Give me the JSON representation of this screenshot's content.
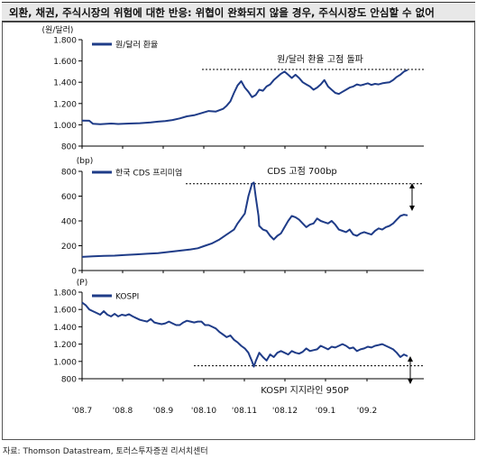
{
  "title": "외환, 채권, 주식시장의 위험에 대한 반응: 위협이 완화되지 않을 경우, 주식시장도 안심할 수 없어",
  "source": "자료: Thomson Datastream, 토러스투자증권 리서치센터",
  "x_tick_labels": [
    "'08.7",
    "'08.8",
    "'08.9",
    "'08.10",
    "'08.11",
    "'08.12",
    "'09.1",
    "'09.2"
  ],
  "chart_data": [
    {
      "type": "line",
      "unit_label": "(원/달러)",
      "legend": "원/달러 환율",
      "annotation": "원/달러 환율 고점 돌파",
      "threshold": 1520,
      "ylim": [
        800,
        1800
      ],
      "yticks": [
        "1.800",
        "1.600",
        "1.400",
        "1.200",
        "1.000",
        "800"
      ],
      "color": "#1f3c88",
      "points": [
        [
          0,
          1040
        ],
        [
          2,
          1038
        ],
        [
          3,
          1010
        ],
        [
          5,
          1005
        ],
        [
          8,
          1012
        ],
        [
          10,
          1008
        ],
        [
          13,
          1012
        ],
        [
          16,
          1015
        ],
        [
          19,
          1022
        ],
        [
          21,
          1030
        ],
        [
          23,
          1035
        ],
        [
          25,
          1045
        ],
        [
          27,
          1060
        ],
        [
          29,
          1080
        ],
        [
          31,
          1090
        ],
        [
          33,
          1110
        ],
        [
          35,
          1130
        ],
        [
          37,
          1125
        ],
        [
          39,
          1150
        ],
        [
          40,
          1180
        ],
        [
          41,
          1220
        ],
        [
          42,
          1300
        ],
        [
          43,
          1370
        ],
        [
          44,
          1410
        ],
        [
          45,
          1350
        ],
        [
          46,
          1310
        ],
        [
          47,
          1260
        ],
        [
          48,
          1280
        ],
        [
          49,
          1330
        ],
        [
          50,
          1320
        ],
        [
          51,
          1360
        ],
        [
          52,
          1380
        ],
        [
          53,
          1420
        ],
        [
          54,
          1450
        ],
        [
          55,
          1480
        ],
        [
          56,
          1500
        ],
        [
          57,
          1470
        ],
        [
          58,
          1440
        ],
        [
          59,
          1470
        ],
        [
          60,
          1440
        ],
        [
          61,
          1400
        ],
        [
          62,
          1380
        ],
        [
          63,
          1360
        ],
        [
          64,
          1330
        ],
        [
          65,
          1350
        ],
        [
          66,
          1380
        ],
        [
          67,
          1420
        ],
        [
          68,
          1360
        ],
        [
          69,
          1330
        ],
        [
          70,
          1300
        ],
        [
          71,
          1290
        ],
        [
          72,
          1310
        ],
        [
          73,
          1330
        ],
        [
          74,
          1350
        ],
        [
          75,
          1360
        ],
        [
          76,
          1380
        ],
        [
          77,
          1370
        ],
        [
          78,
          1380
        ],
        [
          79,
          1390
        ],
        [
          80,
          1375
        ],
        [
          81,
          1385
        ],
        [
          82,
          1380
        ],
        [
          83,
          1390
        ],
        [
          84,
          1395
        ],
        [
          85,
          1400
        ],
        [
          86,
          1420
        ],
        [
          87,
          1450
        ],
        [
          88,
          1470
        ],
        [
          89,
          1500
        ],
        [
          90,
          1515
        ]
      ]
    },
    {
      "type": "line",
      "unit_label": "(bp)",
      "legend": "한국 CDS 프리미엄",
      "annotation": "CDS 고점 700bp",
      "threshold": 700,
      "ylim": [
        0,
        800
      ],
      "yticks": [
        "800",
        "600",
        "400",
        "200",
        "0"
      ],
      "color": "#1f3c88",
      "points": [
        [
          0,
          110
        ],
        [
          3,
          115
        ],
        [
          6,
          118
        ],
        [
          9,
          120
        ],
        [
          12,
          125
        ],
        [
          15,
          130
        ],
        [
          18,
          135
        ],
        [
          21,
          140
        ],
        [
          24,
          150
        ],
        [
          27,
          160
        ],
        [
          30,
          170
        ],
        [
          32,
          180
        ],
        [
          34,
          200
        ],
        [
          36,
          220
        ],
        [
          38,
          250
        ],
        [
          40,
          290
        ],
        [
          42,
          330
        ],
        [
          43,
          380
        ],
        [
          44,
          420
        ],
        [
          45,
          460
        ],
        [
          46,
          600
        ],
        [
          47,
          700
        ],
        [
          47.5,
          710
        ],
        [
          48,
          600
        ],
        [
          48.8,
          440
        ],
        [
          49,
          360
        ],
        [
          50,
          330
        ],
        [
          51,
          320
        ],
        [
          52,
          280
        ],
        [
          53,
          250
        ],
        [
          54,
          280
        ],
        [
          55,
          300
        ],
        [
          56,
          350
        ],
        [
          57,
          400
        ],
        [
          58,
          440
        ],
        [
          59,
          430
        ],
        [
          60,
          410
        ],
        [
          61,
          380
        ],
        [
          62,
          350
        ],
        [
          63,
          370
        ],
        [
          64,
          380
        ],
        [
          65,
          420
        ],
        [
          66,
          400
        ],
        [
          67,
          390
        ],
        [
          68,
          380
        ],
        [
          69,
          400
        ],
        [
          70,
          370
        ],
        [
          71,
          330
        ],
        [
          72,
          320
        ],
        [
          73,
          310
        ],
        [
          74,
          330
        ],
        [
          75,
          290
        ],
        [
          76,
          280
        ],
        [
          77,
          300
        ],
        [
          78,
          310
        ],
        [
          79,
          300
        ],
        [
          80,
          290
        ],
        [
          81,
          320
        ],
        [
          82,
          340
        ],
        [
          83,
          330
        ],
        [
          84,
          350
        ],
        [
          85,
          360
        ],
        [
          86,
          380
        ],
        [
          87,
          410
        ],
        [
          88,
          440
        ],
        [
          89,
          450
        ],
        [
          90,
          445
        ]
      ]
    },
    {
      "type": "line",
      "unit_label": "(P)",
      "legend": "KOSPI",
      "annotation": "KOSPI 지지라인 950P",
      "threshold": 950,
      "ylim": [
        800,
        1800
      ],
      "yticks": [
        "1.800",
        "1.600",
        "1.400",
        "1.200",
        "1.000",
        "800"
      ],
      "color": "#1f3c88",
      "points": [
        [
          0,
          1680
        ],
        [
          1,
          1650
        ],
        [
          2,
          1600
        ],
        [
          3,
          1580
        ],
        [
          4,
          1560
        ],
        [
          5,
          1540
        ],
        [
          6,
          1580
        ],
        [
          7,
          1540
        ],
        [
          8,
          1520
        ],
        [
          9,
          1550
        ],
        [
          10,
          1520
        ],
        [
          11,
          1540
        ],
        [
          12,
          1530
        ],
        [
          13,
          1545
        ],
        [
          14,
          1520
        ],
        [
          15,
          1500
        ],
        [
          16,
          1480
        ],
        [
          17,
          1470
        ],
        [
          18,
          1460
        ],
        [
          19,
          1490
        ],
        [
          20,
          1450
        ],
        [
          21,
          1440
        ],
        [
          22,
          1430
        ],
        [
          23,
          1440
        ],
        [
          24,
          1460
        ],
        [
          25,
          1440
        ],
        [
          26,
          1420
        ],
        [
          27,
          1420
        ],
        [
          28,
          1450
        ],
        [
          29,
          1470
        ],
        [
          30,
          1460
        ],
        [
          31,
          1450
        ],
        [
          32,
          1460
        ],
        [
          33,
          1460
        ],
        [
          34,
          1420
        ],
        [
          35,
          1420
        ],
        [
          36,
          1400
        ],
        [
          37,
          1380
        ],
        [
          38,
          1340
        ],
        [
          39,
          1310
        ],
        [
          40,
          1280
        ],
        [
          41,
          1300
        ],
        [
          42,
          1250
        ],
        [
          43,
          1220
        ],
        [
          44,
          1180
        ],
        [
          45,
          1150
        ],
        [
          46,
          1100
        ],
        [
          47,
          1000
        ],
        [
          47.5,
          940
        ],
        [
          48,
          1000
        ],
        [
          49,
          1100
        ],
        [
          50,
          1050
        ],
        [
          51,
          1010
        ],
        [
          52,
          1080
        ],
        [
          53,
          1050
        ],
        [
          54,
          1100
        ],
        [
          55,
          1120
        ],
        [
          56,
          1100
        ],
        [
          57,
          1080
        ],
        [
          58,
          1120
        ],
        [
          59,
          1100
        ],
        [
          60,
          1090
        ],
        [
          61,
          1110
        ],
        [
          62,
          1150
        ],
        [
          63,
          1120
        ],
        [
          64,
          1130
        ],
        [
          65,
          1140
        ],
        [
          66,
          1180
        ],
        [
          67,
          1160
        ],
        [
          68,
          1140
        ],
        [
          69,
          1170
        ],
        [
          70,
          1160
        ],
        [
          71,
          1180
        ],
        [
          72,
          1200
        ],
        [
          73,
          1180
        ],
        [
          74,
          1150
        ],
        [
          75,
          1160
        ],
        [
          76,
          1120
        ],
        [
          77,
          1140
        ],
        [
          78,
          1150
        ],
        [
          79,
          1170
        ],
        [
          80,
          1160
        ],
        [
          81,
          1180
        ],
        [
          82,
          1190
        ],
        [
          83,
          1200
        ],
        [
          84,
          1180
        ],
        [
          85,
          1160
        ],
        [
          86,
          1140
        ],
        [
          87,
          1100
        ],
        [
          88,
          1050
        ],
        [
          89,
          1080
        ],
        [
          90,
          1060
        ]
      ]
    }
  ]
}
